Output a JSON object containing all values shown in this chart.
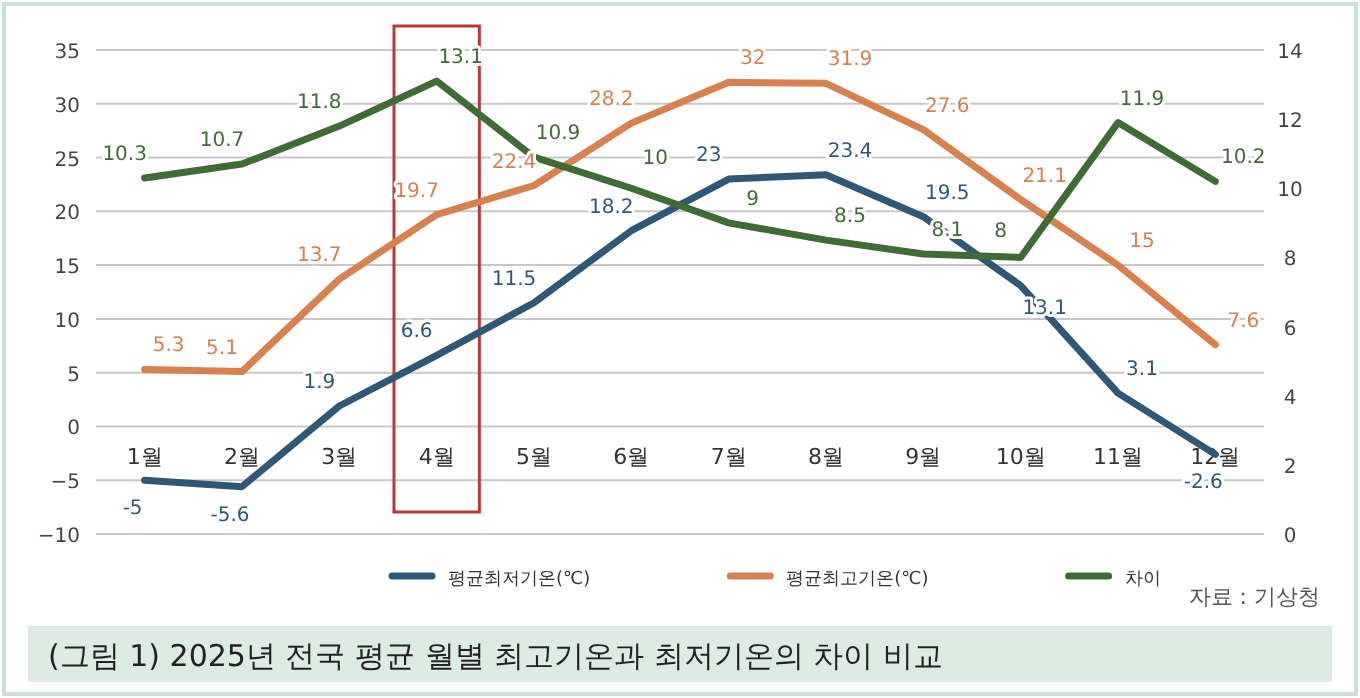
{
  "chart_data": {
    "type": "line",
    "title": "(그림 1) 2025년 전국 평균 월별 최고기온과 최저기온의 차이 비교",
    "categories": [
      "1월",
      "2월",
      "3월",
      "4월",
      "5월",
      "6월",
      "7월",
      "8월",
      "9월",
      "10월",
      "11월",
      "12월"
    ],
    "series": [
      {
        "name": "평균최저기온(℃)",
        "color": "#2f5878",
        "values": [
          -5,
          -5.6,
          1.9,
          6.6,
          11.5,
          18.2,
          23,
          23.4,
          19.5,
          13.1,
          3.1,
          -2.6
        ]
      },
      {
        "name": "평균최고기온(℃)",
        "color": "#d9804f",
        "values": [
          5.3,
          5.1,
          13.7,
          19.7,
          22.4,
          28.2,
          32,
          31.9,
          27.6,
          21.1,
          15,
          7.6
        ]
      },
      {
        "name": "차이",
        "color": "#3f6b36",
        "axis": "y2",
        "values": [
          10.3,
          10.7,
          11.8,
          13.1,
          10.9,
          10,
          9,
          8.5,
          8.1,
          8,
          11.9,
          10.2
        ]
      }
    ],
    "ylim": [
      -10,
      35
    ],
    "yticks": [
      -10,
      -5,
      0,
      5,
      10,
      15,
      20,
      25,
      30,
      35
    ],
    "y2lim": [
      0,
      14
    ],
    "y2ticks": [
      0,
      2,
      4,
      6,
      8,
      10,
      12,
      14
    ],
    "grid": "y",
    "legend": "bottom",
    "data_labels": true,
    "marker": "none",
    "line_style": "solid",
    "annotations": [
      "자료 : 기상청"
    ]
  }
}
